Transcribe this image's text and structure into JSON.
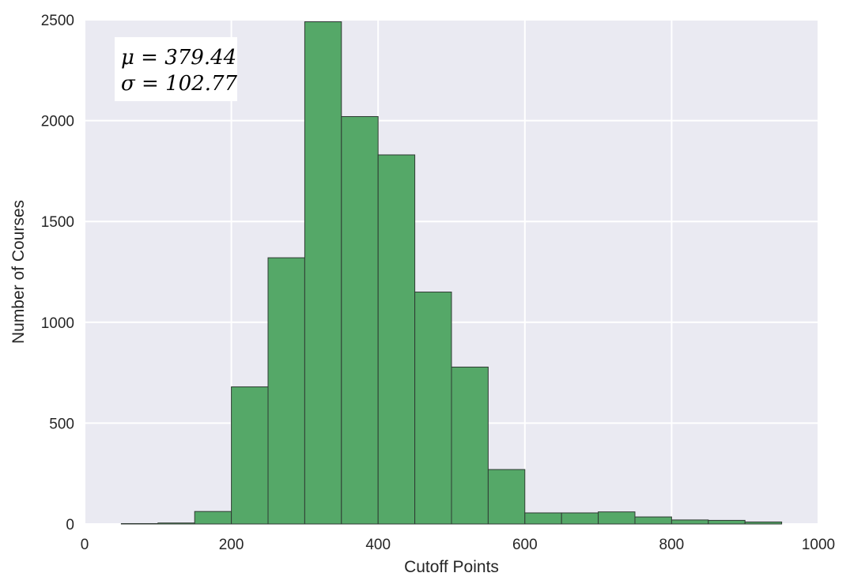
{
  "chart_data": {
    "type": "bar",
    "subtype": "histogram",
    "xlabel": "Cutoff Points",
    "ylabel": "Number of Courses",
    "xlim": [
      0,
      1000
    ],
    "ylim": [
      0,
      2500
    ],
    "xticks": [
      0,
      200,
      400,
      600,
      800,
      1000
    ],
    "yticks": [
      0,
      500,
      1000,
      1500,
      2000,
      2500
    ],
    "grid": true,
    "bin_width": 50,
    "bins": [
      {
        "x0": 50,
        "x1": 100,
        "value": 2
      },
      {
        "x0": 100,
        "x1": 150,
        "value": 5
      },
      {
        "x0": 150,
        "x1": 200,
        "value": 62
      },
      {
        "x0": 200,
        "x1": 250,
        "value": 680
      },
      {
        "x0": 250,
        "x1": 300,
        "value": 1320
      },
      {
        "x0": 300,
        "x1": 350,
        "value": 2490
      },
      {
        "x0": 350,
        "x1": 400,
        "value": 2020
      },
      {
        "x0": 400,
        "x1": 450,
        "value": 1830
      },
      {
        "x0": 450,
        "x1": 500,
        "value": 1150
      },
      {
        "x0": 500,
        "x1": 550,
        "value": 778
      },
      {
        "x0": 550,
        "x1": 600,
        "value": 270
      },
      {
        "x0": 600,
        "x1": 650,
        "value": 55
      },
      {
        "x0": 650,
        "x1": 700,
        "value": 55
      },
      {
        "x0": 700,
        "x1": 750,
        "value": 60
      },
      {
        "x0": 750,
        "x1": 800,
        "value": 35
      },
      {
        "x0": 800,
        "x1": 850,
        "value": 20
      },
      {
        "x0": 850,
        "x1": 900,
        "value": 18
      },
      {
        "x0": 900,
        "x1": 950,
        "value": 10
      }
    ],
    "annotation": {
      "line1": "μ = 379.44",
      "line2": "σ = 102.77"
    },
    "colors": {
      "bar_fill": "#55a868",
      "bar_edge": "#2f3a33",
      "plot_background": "#eaeaf2",
      "grid": "#ffffff"
    }
  }
}
